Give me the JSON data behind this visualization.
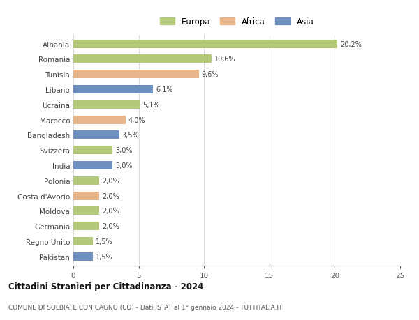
{
  "categories": [
    "Albania",
    "Romania",
    "Tunisia",
    "Libano",
    "Ucraina",
    "Marocco",
    "Bangladesh",
    "Svizzera",
    "India",
    "Polonia",
    "Costa d'Avorio",
    "Moldova",
    "Germania",
    "Regno Unito",
    "Pakistan"
  ],
  "values": [
    20.2,
    10.6,
    9.6,
    6.1,
    5.1,
    4.0,
    3.5,
    3.0,
    3.0,
    2.0,
    2.0,
    2.0,
    2.0,
    1.5,
    1.5
  ],
  "labels": [
    "20,2%",
    "10,6%",
    "9,6%",
    "6,1%",
    "5,1%",
    "4,0%",
    "3,5%",
    "3,0%",
    "3,0%",
    "2,0%",
    "2,0%",
    "2,0%",
    "2,0%",
    "1,5%",
    "1,5%"
  ],
  "continents": [
    "Europa",
    "Europa",
    "Africa",
    "Asia",
    "Europa",
    "Africa",
    "Asia",
    "Europa",
    "Asia",
    "Europa",
    "Africa",
    "Europa",
    "Europa",
    "Europa",
    "Asia"
  ],
  "colors": {
    "Europa": "#b5c97a",
    "Africa": "#e8b48a",
    "Asia": "#6e8fbf"
  },
  "legend_labels": [
    "Europa",
    "Africa",
    "Asia"
  ],
  "legend_colors": [
    "#b5c97a",
    "#e8b48a",
    "#6e8fbf"
  ],
  "title": "Cittadini Stranieri per Cittadinanza - 2024",
  "subtitle": "COMUNE DI SOLBIATE CON CAGNO (CO) - Dati ISTAT al 1° gennaio 2024 - TUTTITALIA.IT",
  "xlim": [
    0,
    25
  ],
  "xticks": [
    0,
    5,
    10,
    15,
    20,
    25
  ],
  "background_color": "#ffffff",
  "grid_color": "#dddddd"
}
